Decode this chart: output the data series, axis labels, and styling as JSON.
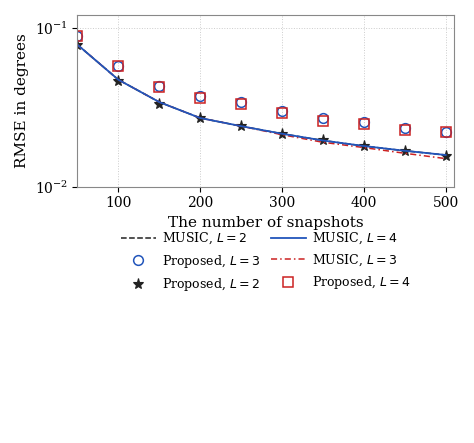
{
  "snapshots_lines": [
    50,
    100,
    150,
    200,
    250,
    300,
    350,
    400,
    450,
    500
  ],
  "snapshots_scatter": [
    50,
    100,
    150,
    200,
    250,
    300,
    350,
    400,
    450,
    500
  ],
  "music_L2": [
    0.078,
    0.047,
    0.034,
    0.027,
    0.024,
    0.0215,
    0.0195,
    0.018,
    0.0168,
    0.0158
  ],
  "proposed_L2": [
    0.078,
    0.046,
    0.033,
    0.027,
    0.024,
    0.0215,
    0.0195,
    0.018,
    0.0168,
    0.0156
  ],
  "music_L3": [
    0.078,
    0.047,
    0.034,
    0.027,
    0.024,
    0.0212,
    0.019,
    0.0176,
    0.0162,
    0.015
  ],
  "proposed_L3": [
    0.088,
    0.057,
    0.043,
    0.037,
    0.034,
    0.03,
    0.027,
    0.0255,
    0.0235,
    0.022
  ],
  "music_L4": [
    0.078,
    0.047,
    0.034,
    0.027,
    0.024,
    0.0215,
    0.0195,
    0.018,
    0.0168,
    0.0158
  ],
  "proposed_L4": [
    0.088,
    0.057,
    0.042,
    0.036,
    0.033,
    0.029,
    0.026,
    0.0248,
    0.0228,
    0.022
  ],
  "xlim": [
    50,
    510
  ],
  "ylim_log": [
    0.01,
    0.12
  ],
  "xlabel": "The number of snapshots",
  "ylabel": "RMSE in degrees",
  "color_black": "#222222",
  "color_blue": "#2255bb",
  "color_red": "#cc2222",
  "grid_color": "#cccccc",
  "background_color": "#ffffff",
  "tick_fontsize": 10,
  "label_fontsize": 11,
  "legend_fontsize": 9
}
